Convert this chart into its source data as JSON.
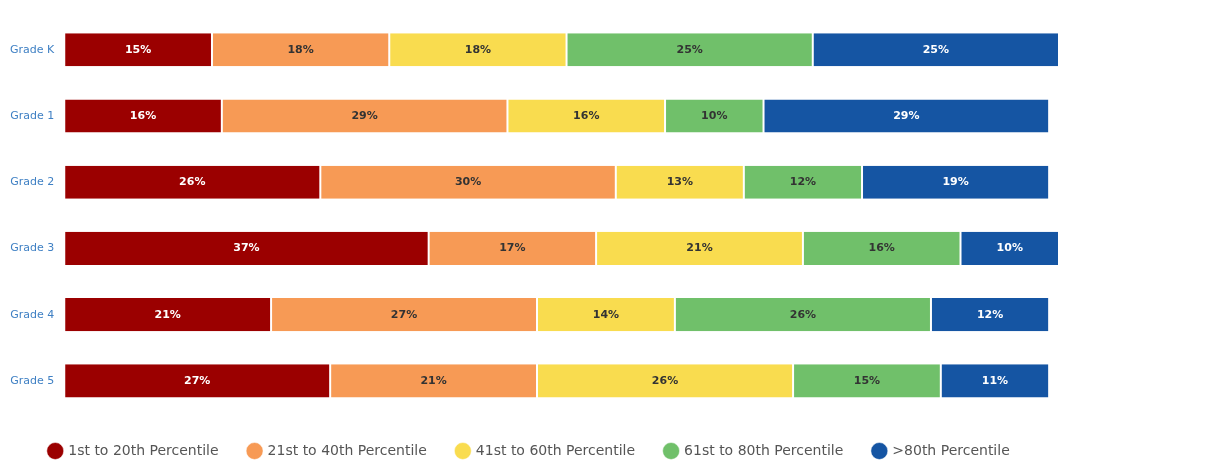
{
  "chart_data": {
    "type": "bar",
    "orientation": "horizontal",
    "stacked": true,
    "categories": [
      "Grade K",
      "Grade 1",
      "Grade 2",
      "Grade 3",
      "Grade 4",
      "Grade 5"
    ],
    "series": [
      {
        "name": "1st to 20th Percentile",
        "color": "#9b0000",
        "values": [
          15,
          16,
          26,
          37,
          21,
          27
        ],
        "value_labels": [
          "15%",
          "16%",
          "26%",
          "37%",
          "21%",
          "27%"
        ]
      },
      {
        "name": "21st to 40th Percentile",
        "color": "#f79a55",
        "values": [
          18,
          29,
          30,
          17,
          27,
          21
        ],
        "value_labels": [
          "18%",
          "29%",
          "30%",
          "17%",
          "27%",
          "21%"
        ]
      },
      {
        "name": "41st to 60th Percentile",
        "color": "#f9dc4f",
        "values": [
          18,
          16,
          13,
          21,
          14,
          26
        ],
        "value_labels": [
          "18%",
          "16%",
          "13%",
          "21%",
          "14%",
          "26%"
        ]
      },
      {
        "name": "61st to 80th Percentile",
        "color": "#70c06a",
        "values": [
          25,
          10,
          12,
          16,
          26,
          15
        ],
        "value_labels": [
          "25%",
          "10%",
          "12%",
          "16%",
          "26%",
          "15%"
        ]
      },
      {
        "name": ">80th Percentile",
        "color": "#1555a3",
        "values": [
          25,
          29,
          19,
          10,
          12,
          11
        ],
        "value_labels": [
          "25%",
          "29%",
          "19%",
          "10%",
          "12%",
          "11%"
        ]
      }
    ],
    "xlim": [
      0,
      101
    ],
    "tick_labels": "y",
    "legend": "bottom"
  }
}
